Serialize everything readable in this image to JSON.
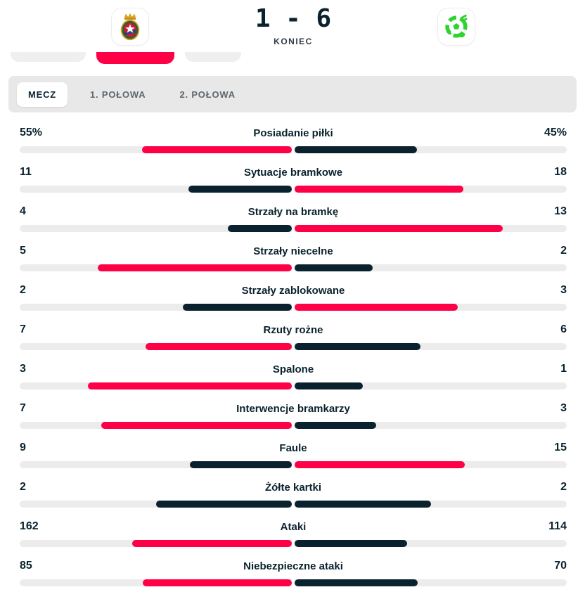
{
  "header": {
    "score": "1 - 6",
    "status": "KONIEC",
    "home_logo": "wisla-krakow-crest",
    "away_logo": "green-team-crest"
  },
  "filter_chips": [
    {
      "active": false
    },
    {
      "active": true
    },
    {
      "active": false
    }
  ],
  "tabs": [
    {
      "label": "MECZ",
      "active": true
    },
    {
      "label": "1. POŁOWA",
      "active": false
    },
    {
      "label": "2. POŁOWA",
      "active": false
    }
  ],
  "colors": {
    "accent": "#ff0046",
    "dark": "#0a222e",
    "track": "#ececec"
  },
  "stats": {
    "rows": [
      {
        "label": "Posiadanie piłki",
        "home": "55%",
        "away": "45%",
        "home_value": 55,
        "away_value": 45
      },
      {
        "label": "Sytuacje bramkowe",
        "home": "11",
        "away": "18",
        "home_value": 11,
        "away_value": 18
      },
      {
        "label": "Strzały na bramkę",
        "home": "4",
        "away": "13",
        "home_value": 4,
        "away_value": 13
      },
      {
        "label": "Strzały niecelne",
        "home": "5",
        "away": "2",
        "home_value": 5,
        "away_value": 2
      },
      {
        "label": "Strzały zablokowane",
        "home": "2",
        "away": "3",
        "home_value": 2,
        "away_value": 3
      },
      {
        "label": "Rzuty rożne",
        "home": "7",
        "away": "6",
        "home_value": 7,
        "away_value": 6
      },
      {
        "label": "Spalone",
        "home": "3",
        "away": "1",
        "home_value": 3,
        "away_value": 1
      },
      {
        "label": "Interwencje bramkarzy",
        "home": "7",
        "away": "3",
        "home_value": 7,
        "away_value": 3
      },
      {
        "label": "Faule",
        "home": "9",
        "away": "15",
        "home_value": 9,
        "away_value": 15
      },
      {
        "label": "Żółte kartki",
        "home": "2",
        "away": "2",
        "home_value": 2,
        "away_value": 2
      },
      {
        "label": "Ataki",
        "home": "162",
        "away": "114",
        "home_value": 162,
        "away_value": 114
      },
      {
        "label": "Niebezpieczne ataki",
        "home": "85",
        "away": "70",
        "home_value": 85,
        "away_value": 70
      }
    ]
  }
}
